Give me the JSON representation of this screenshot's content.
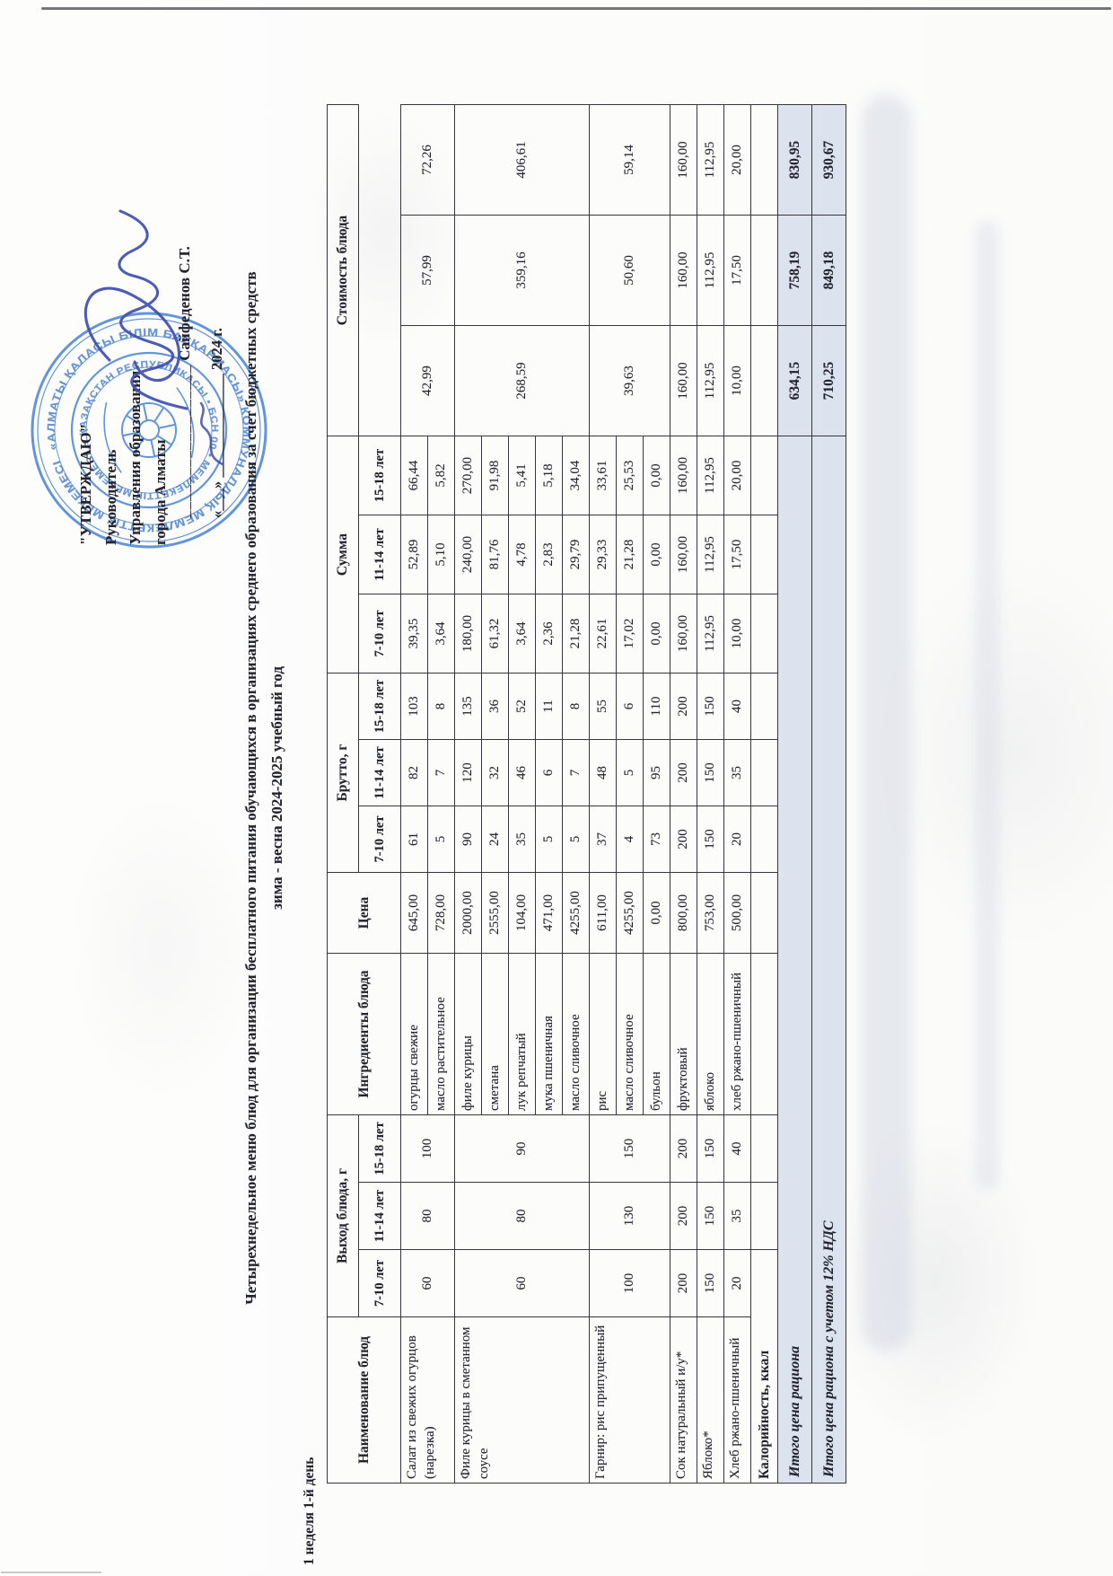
{
  "approval": {
    "quote_title": "\"УТВЕРЖДАЮ\"",
    "line1": "Руководитель",
    "line2": "Управления образования",
    "line3": "города Алматы",
    "sign_line_blank": "__________________",
    "signee": "Сайфеденов С.Т.",
    "date_line": "«___» ______________ 2024 г."
  },
  "stamp": {
    "outer_text": "«АЛМАТЫ ҚАЛАСЫ БІЛІМ БАСҚАРМАСЫ» КОММУНАЛДЫҚ МЕМЛЕКЕТТІК МЕКЕМЕСІ",
    "inner_text": "• ҚАЗАҚСТАН РЕСПУБЛИКАСЫ • БСН 00 • МЕМЛЕКЕТТІК МЕКЕМЕСІ"
  },
  "title": {
    "line1": "Четырехнедельное меню блюд для организации бесплатного питания обучающихся в организациях среднего образования за счет бюджетных средств",
    "line2": "зима - весна 2024-2025 учебный год"
  },
  "week_day_label": "1 неделя 1-й день",
  "colors": {
    "stamp_blue": "#4e87d6",
    "signature_blue": "#3f4fae",
    "totals_highlight": "#dce3ee"
  },
  "table": {
    "headers": {
      "dish": "Наименование блюд",
      "output": "Выход блюда, г",
      "ingredients": "Ингредиенты блюда",
      "price": "Цена",
      "brutto": "Брутто, г",
      "sum": "Сумма",
      "cost": "Стоимость блюда",
      "age_groups": [
        "7-10 лет",
        "11-14 лет",
        "15-18 лет"
      ]
    },
    "dishes": [
      {
        "name": "Салат из свежих огурцов (нарезка)",
        "output": [
          "60",
          "80",
          "100"
        ],
        "cost": [
          "42,99",
          "57,99",
          "72,26"
        ],
        "ingredients": [
          {
            "name": "огурцы свежие",
            "price": "645,00",
            "brutto": [
              "61",
              "82",
              "103"
            ],
            "sum": [
              "39,35",
              "52,89",
              "66,44"
            ]
          },
          {
            "name": "масло растительное",
            "price": "728,00",
            "brutto": [
              "5",
              "7",
              "8"
            ],
            "sum": [
              "3,64",
              "5,10",
              "5,82"
            ]
          }
        ]
      },
      {
        "name": "Филе курицы в сметанном соусе",
        "output": [
          "60",
          "80",
          "90"
        ],
        "cost": [
          "268,59",
          "359,16",
          "406,61"
        ],
        "ingredients": [
          {
            "name": "филе курицы",
            "price": "2000,00",
            "brutto": [
              "90",
              "120",
              "135"
            ],
            "sum": [
              "180,00",
              "240,00",
              "270,00"
            ]
          },
          {
            "name": "сметана",
            "price": "2555,00",
            "brutto": [
              "24",
              "32",
              "36"
            ],
            "sum": [
              "61,32",
              "81,76",
              "91,98"
            ]
          },
          {
            "name": "лук репчатый",
            "price": "104,00",
            "brutto": [
              "35",
              "46",
              "52"
            ],
            "sum": [
              "3,64",
              "4,78",
              "5,41"
            ]
          },
          {
            "name": "мука пшеничная",
            "price": "471,00",
            "brutto": [
              "5",
              "6",
              "11"
            ],
            "sum": [
              "2,36",
              "2,83",
              "5,18"
            ]
          },
          {
            "name": "масло сливочное",
            "price": "4255,00",
            "brutto": [
              "5",
              "7",
              "8"
            ],
            "sum": [
              "21,28",
              "29,79",
              "34,04"
            ]
          }
        ]
      },
      {
        "name": "Гарнир: рис припущенный",
        "output": [
          "100",
          "130",
          "150"
        ],
        "cost": [
          "39,63",
          "50,60",
          "59,14"
        ],
        "ingredients": [
          {
            "name": "рис",
            "price": "611,00",
            "brutto": [
              "37",
              "48",
              "55"
            ],
            "sum": [
              "22,61",
              "29,33",
              "33,61"
            ]
          },
          {
            "name": "масло сливочное",
            "price": "4255,00",
            "brutto": [
              "4",
              "5",
              "6"
            ],
            "sum": [
              "17,02",
              "21,28",
              "25,53"
            ]
          },
          {
            "name": "бульон",
            "price": "0,00",
            "brutto": [
              "73",
              "95",
              "110"
            ],
            "sum": [
              "0,00",
              "0,00",
              "0,00"
            ]
          }
        ]
      },
      {
        "name": "Сок натуральный и/у*",
        "output": [
          "200",
          "200",
          "200"
        ],
        "cost": [
          "160,00",
          "160,00",
          "160,00"
        ],
        "ingredients": [
          {
            "name": "фруктовый",
            "price": "800,00",
            "brutto": [
              "200",
              "200",
              "200"
            ],
            "sum": [
              "160,00",
              "160,00",
              "160,00"
            ]
          }
        ]
      },
      {
        "name": "Яблоко*",
        "output": [
          "150",
          "150",
          "150"
        ],
        "cost": [
          "112,95",
          "112,95",
          "112,95"
        ],
        "ingredients": [
          {
            "name": "яблоко",
            "price": "753,00",
            "brutto": [
              "150",
              "150",
              "150"
            ],
            "sum": [
              "112,95",
              "112,95",
              "112,95"
            ]
          }
        ]
      },
      {
        "name": "Хлеб ржано-пшеничный",
        "output": [
          "20",
          "35",
          "40"
        ],
        "cost": [
          "10,00",
          "17,50",
          "20,00"
        ],
        "ingredients": [
          {
            "name": "хлеб ржано-пшеничный",
            "price": "500,00",
            "brutto": [
              "20",
              "35",
              "40"
            ],
            "sum": [
              "10,00",
              "17,50",
              "20,00"
            ]
          }
        ]
      }
    ],
    "calories_row_label": "Калорийность, ккал",
    "totals": [
      {
        "label": "Итого цена рациона",
        "values": [
          "634,15",
          "758,19",
          "830,95"
        ]
      },
      {
        "label": "Итого цена рациона с учетом 12% НДС",
        "values": [
          "710,25",
          "849,18",
          "930,67"
        ]
      }
    ]
  }
}
